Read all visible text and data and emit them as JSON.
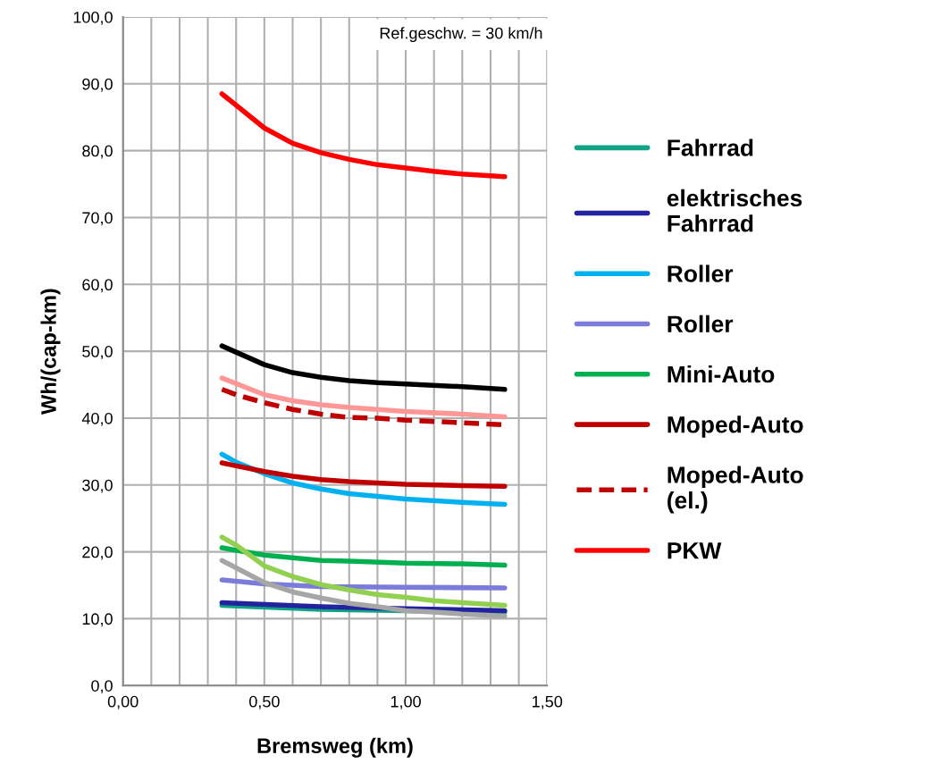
{
  "chart_data": {
    "type": "line",
    "xlabel": "Bremsweg (km)",
    "ylabel": "Wh/(cap-km)",
    "annotations": [
      "Ref.geschw. = 30 km/h"
    ],
    "xlim": [
      0,
      1.5
    ],
    "ylim": [
      0,
      100
    ],
    "xticks": [
      {
        "value": 0,
        "label": "0,00"
      },
      {
        "value": 0.1,
        "label": null
      },
      {
        "value": 0.2,
        "label": null
      },
      {
        "value": 0.3,
        "label": null
      },
      {
        "value": 0.4,
        "label": null
      },
      {
        "value": 0.5,
        "label": "0,50"
      },
      {
        "value": 0.6,
        "label": null
      },
      {
        "value": 0.7,
        "label": null
      },
      {
        "value": 0.8,
        "label": null
      },
      {
        "value": 0.9,
        "label": null
      },
      {
        "value": 1.0,
        "label": "1,00"
      },
      {
        "value": 1.1,
        "label": null
      },
      {
        "value": 1.2,
        "label": null
      },
      {
        "value": 1.3,
        "label": null
      },
      {
        "value": 1.4,
        "label": null
      },
      {
        "value": 1.5,
        "label": "1,50"
      }
    ],
    "yticks": [
      {
        "value": 0,
        "label": "0,0"
      },
      {
        "value": 10,
        "label": "10,0"
      },
      {
        "value": 20,
        "label": "20,0"
      },
      {
        "value": 30,
        "label": "30,0"
      },
      {
        "value": 40,
        "label": "40,0"
      },
      {
        "value": 50,
        "label": "50,0"
      },
      {
        "value": 60,
        "label": "60,0"
      },
      {
        "value": 70,
        "label": "70,0"
      },
      {
        "value": 80,
        "label": "80,0"
      },
      {
        "value": 90,
        "label": "90,0"
      },
      {
        "value": 100,
        "label": "100,0"
      }
    ],
    "grid": true,
    "legend": "right",
    "marker": "none",
    "line_style": "solid",
    "series": [
      {
        "name": "Fahrrad",
        "color": "#12a385",
        "x": [
          0.35,
          0.7,
          1.0,
          1.35
        ],
        "values": [
          12.0,
          11.4,
          11.2,
          11.0
        ]
      },
      {
        "name": "elektrisches\nFahrrad",
        "color": "#2323a0",
        "x": [
          0.35,
          0.7,
          1.0,
          1.35
        ],
        "values": [
          12.4,
          11.8,
          11.5,
          11.2
        ]
      },
      {
        "name": "Roller",
        "color": "#00b0f0",
        "x": [
          0.35,
          0.4,
          0.5,
          0.6,
          0.7,
          0.8,
          0.9,
          1.0,
          1.2,
          1.35
        ],
        "values": [
          34.6,
          33.4,
          31.7,
          30.3,
          29.4,
          28.7,
          28.3,
          27.9,
          27.4,
          27.1
        ]
      },
      {
        "name": "Roller",
        "color": "#7b7bdb",
        "x": [
          0.35,
          0.5,
          0.7,
          1.0,
          1.35
        ],
        "values": [
          15.8,
          15.2,
          14.8,
          14.7,
          14.6
        ]
      },
      {
        "name": "Mini-Auto",
        "color": "#00b050",
        "x": [
          0.35,
          0.5,
          0.6,
          0.7,
          0.8,
          1.0,
          1.2,
          1.35
        ],
        "values": [
          20.6,
          19.5,
          19.1,
          18.7,
          18.6,
          18.3,
          18.2,
          18.0
        ]
      },
      {
        "name": "Moped-Auto",
        "color": "#c00000",
        "x": [
          0.35,
          0.5,
          0.6,
          0.7,
          0.8,
          1.0,
          1.2,
          1.35
        ],
        "values": [
          33.3,
          32.0,
          31.3,
          30.8,
          30.5,
          30.1,
          29.9,
          29.8
        ]
      },
      {
        "name": "Moped-Auto\n(el.)",
        "color": "#c00000",
        "line_style": "dashed",
        "x": [
          0.35,
          0.4,
          0.5,
          0.6,
          0.7,
          0.8,
          0.9,
          1.0,
          1.2,
          1.35
        ],
        "values": [
          44.3,
          43.5,
          42.3,
          41.3,
          40.6,
          40.1,
          40.0,
          39.7,
          39.3,
          39.0
        ]
      },
      {
        "color": "#ff9797",
        "x": [
          0.35,
          0.5,
          0.6,
          0.7,
          0.8,
          0.9,
          1.0,
          1.2,
          1.35
        ],
        "values": [
          46.0,
          43.5,
          42.6,
          42.0,
          41.6,
          41.3,
          41.0,
          40.6,
          40.2
        ]
      },
      {
        "color": "#000000",
        "x": [
          0.35,
          0.5,
          0.6,
          0.7,
          0.8,
          0.9,
          1.0,
          1.2,
          1.35
        ],
        "values": [
          50.8,
          48.0,
          46.8,
          46.1,
          45.6,
          45.3,
          45.1,
          44.7,
          44.3
        ]
      },
      {
        "name": "PKW",
        "color": "#ff0000",
        "x": [
          0.35,
          0.5,
          0.6,
          0.7,
          0.8,
          0.9,
          1.0,
          1.1,
          1.2,
          1.35
        ],
        "values": [
          88.5,
          83.4,
          81.1,
          79.7,
          78.7,
          77.9,
          77.4,
          76.9,
          76.5,
          76.1
        ]
      },
      {
        "color": "#92d050",
        "x": [
          0.35,
          0.4,
          0.5,
          0.6,
          0.7,
          0.8,
          0.9,
          1.0,
          1.1,
          1.2,
          1.35
        ],
        "values": [
          22.2,
          21.0,
          17.9,
          16.3,
          15.1,
          14.3,
          13.6,
          13.2,
          12.7,
          12.4,
          12.0
        ]
      },
      {
        "color": "#a6a6a6",
        "x": [
          0.35,
          0.4,
          0.5,
          0.6,
          0.7,
          0.8,
          0.9,
          1.0,
          1.1,
          1.2,
          1.35
        ],
        "values": [
          18.7,
          17.6,
          15.4,
          14.0,
          13.1,
          12.3,
          11.8,
          11.2,
          11.0,
          10.7,
          10.4
        ]
      }
    ]
  }
}
